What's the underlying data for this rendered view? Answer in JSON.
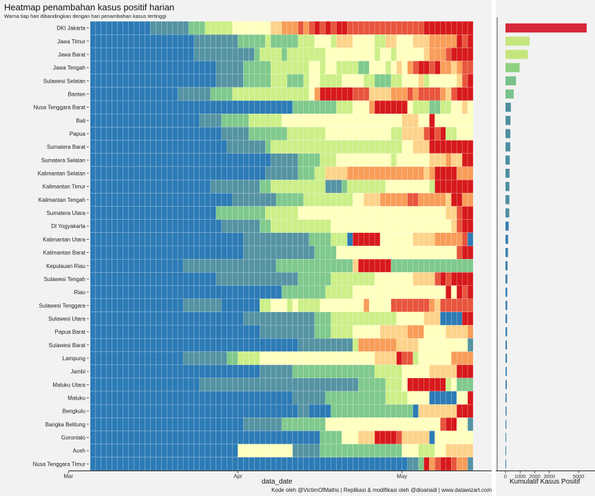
{
  "title": "Heatmap penambahan kasus positif harian",
  "subtitle": "Warna tiap hari dibandingkan dengan hari penambahan kasus tertinggi",
  "caption": "Kode oleh @VictimOfMaths | Replikasi & modifikasi oleh @dioariadi | www.datawizart.com",
  "chart_data": [
    {
      "type": "heatmap",
      "xlabel": "data_date",
      "x_ticks": [
        "Mar",
        "Apr",
        "May"
      ],
      "day_range": [
        "2020-03-05",
        "2020-05-16"
      ],
      "color_scale": [
        "#2c7bb6",
        "#5593a3",
        "#80c98d",
        "#ccef88",
        "#ffffbf",
        "#fdd38a",
        "#f89d59",
        "#e8553d",
        "#d7191c"
      ],
      "provinces": [
        {
          "name": "DKI Jakarta",
          "levels": "0000000000011111112223333344444445566676787878877777777777777888888888"
        },
        {
          "name": "Jawa Timur",
          "levels": "0000000000000000000111111112222232222233344435554444335544455566666878888"
        },
        {
          "name": "Jawa Barat",
          "levels": "0000000000000000000111111111112333323333333444444444344344444566678888"
        },
        {
          "name": "Jawa Tengah",
          "levels": "0000000000000000000000011111222223333333443443333224443454678878665677"
        },
        {
          "name": "Sulawesi Selatan",
          "levels": "0000000000000000000000011111222223332223443333444433222334445344444578"
        },
        {
          "name": "Banten",
          "levels": "000000000000000011111122223333333333333346888888777555566676777765788888"
        },
        {
          "name": "Nusa Tenggara Barat",
          "levels": "0000000000000000000000000000000000000222222223334446888888433322334454"
        },
        {
          "name": "Bali",
          "levels": "0000000000000000000011112222233333344444444444444444444445554484444444"
        },
        {
          "name": "Papua",
          "levels": "0000000000000000000000001111122222223333333444444444444335555787833444"
        },
        {
          "name": "Sumatera Barat",
          "levels": "0000000000000000000000000111111123333333333333333333333334455588888888"
        },
        {
          "name": "Sumatera Selatan",
          "levels": "0000000000000000000000000000000001111122223334444444444344444455565588"
        },
        {
          "name": "Kalimantan Selatan",
          "levels": "0000000000000000000000000000000011111122233555566666666666666568888666"
        },
        {
          "name": "Kalimantan Timur",
          "levels": "0000000000000000000000111111111223333333333111233333334444444438888888"
        },
        {
          "name": "Kalimantan Tengah",
          "levels": "0000000000000000000000000011111111222223333333334455566666776666658866"
        },
        {
          "name": "Sumatera Utara",
          "levels": "0000000000000000000000022222222233333344444444444444444444444444455788"
        },
        {
          "name": "DI Yogyakarta",
          "levels": "0000000000000000000000001111111223333333333344444444444444444444445788"
        },
        {
          "name": "Kalimantan Utara",
          "levels": "0000000000000000000000000000111111111111222233308888844444455556666670"
        },
        {
          "name": "Kalimantan Barat",
          "levels": "0000000000000000000000000000111111111111122224444444444444444444444788"
        },
        {
          "name": "Kepulauan Riau",
          "levels": "0000000000000000011111111111111111222222222222225888888222222222222222"
        },
        {
          "name": "Sulawesi Tengah",
          "levels": "0000000000000000000000011111111111111122222233333333444444455557878888"
        },
        {
          "name": "Riau",
          "levels": "0000000000000000000000000000000000022222222333334444444444444444484878"
        },
        {
          "name": "Sulawesi Tenggara",
          "levels": "0000000000000000011111110000000334443433334444444464444777777765777777"
        },
        {
          "name": "Sulawesi Utara",
          "levels": "0000000000000000000000000000111111111111122233333333333344444555000088"
        },
        {
          "name": "Papua Barat",
          "levels": "0000000000000000000000000000000111111111122233334444455555666444455556"
        },
        {
          "name": "Sulawesi Barat",
          "levels": "0000000000000000000000000000000000000011111111113666666655554444444441"
        },
        {
          "name": "Lampung",
          "levels": "0000000000000000011111111223333444444444444444444444555587734444446666"
        },
        {
          "name": "Jambi",
          "levels": "0000000000000000000000000000000111111222222222222222333334444455555888"
        },
        {
          "name": "Maluku Utara",
          "levels": "0000000000000000000011111111111111111111111111111222223334888888834222"
        },
        {
          "name": "Maluku",
          "levels": "0000000000000000000000000000000000000111111222222222223333444400000448"
        },
        {
          "name": "Bengkulu",
          "levels": "0000000000000000000000000000000000000011000022222222222222205555555888"
        },
        {
          "name": "Bangka Belitung",
          "levels": "0000000000000000000000000000111111122222222444444444444444444444788441"
        },
        {
          "name": "Gorontalo",
          "levels": "0000000000000000000000000000000000000000002222444555888875555504444444"
        },
        {
          "name": "Aceh",
          "levels": "0000000000000000000000000004444444444111112222222222222224443334455555"
        },
        {
          "name": "Nusa Tenggara Timur",
          "levels": "0000000000000000000000000000000000000000000000000000000000112867887661"
        }
      ]
    },
    {
      "type": "bar",
      "orientation": "horizontal",
      "xlabel": "Kumulatif Kasus Positif",
      "x_ticks": [
        "0",
        "1000",
        "2000",
        "3000",
        "5000"
      ],
      "xlim": [
        0,
        5700
      ],
      "categories": [
        "DKI Jakarta",
        "Jawa Timur",
        "Jawa Barat",
        "Jawa Tengah",
        "Sulawesi Selatan",
        "Banten",
        "Nusa Tenggara Barat",
        "Bali",
        "Papua",
        "Sumatera Barat",
        "Sumatera Selatan",
        "Kalimantan Selatan",
        "Kalimantan Timur",
        "Kalimantan Tengah",
        "Sumatera Utara",
        "DI Yogyakarta",
        "Kalimantan Utara",
        "Kalimantan Barat",
        "Kepulauan Riau",
        "Sulawesi Tengah",
        "Riau",
        "Sulawesi Tenggara",
        "Sulawesi Utara",
        "Papua Barat",
        "Sulawesi Barat",
        "Lampung",
        "Jambi",
        "Maluku Utara",
        "Maluku",
        "Bengkulu",
        "Bangka Belitung",
        "Gorontalo",
        "Aceh",
        "Nusa Tenggara Timur"
      ],
      "values": [
        5554,
        1650,
        1530,
        970,
        720,
        560,
        370,
        340,
        330,
        330,
        290,
        280,
        270,
        270,
        260,
        220,
        180,
        170,
        140,
        130,
        120,
        120,
        110,
        110,
        100,
        100,
        90,
        90,
        80,
        70,
        60,
        50,
        40,
        20
      ],
      "colors": [
        "#d62839",
        "#c5e67d",
        "#c5e67d",
        "#8fd080",
        "#79c28a",
        "#79c28a",
        "#4f8fa0",
        "#4f8fa0",
        "#4f8fa0",
        "#4f8fa0",
        "#4f8fa0",
        "#4f8fa0",
        "#4f8fa0",
        "#4f8fa0",
        "#4f8fa0",
        "#3b7fb0",
        "#3b7fb0",
        "#3b7fb0",
        "#3b7fb0",
        "#3b7fb0",
        "#3b7fb0",
        "#3b7fb0",
        "#3b7fb0",
        "#3b7fb0",
        "#3b7fb0",
        "#3b7fb0",
        "#3b7fb0",
        "#3b7fb0",
        "#3b7fb0",
        "#3b7fb0",
        "#3b7fb0",
        "#3b7fb0",
        "#3b7fb0",
        "#3b7fb0"
      ]
    }
  ]
}
